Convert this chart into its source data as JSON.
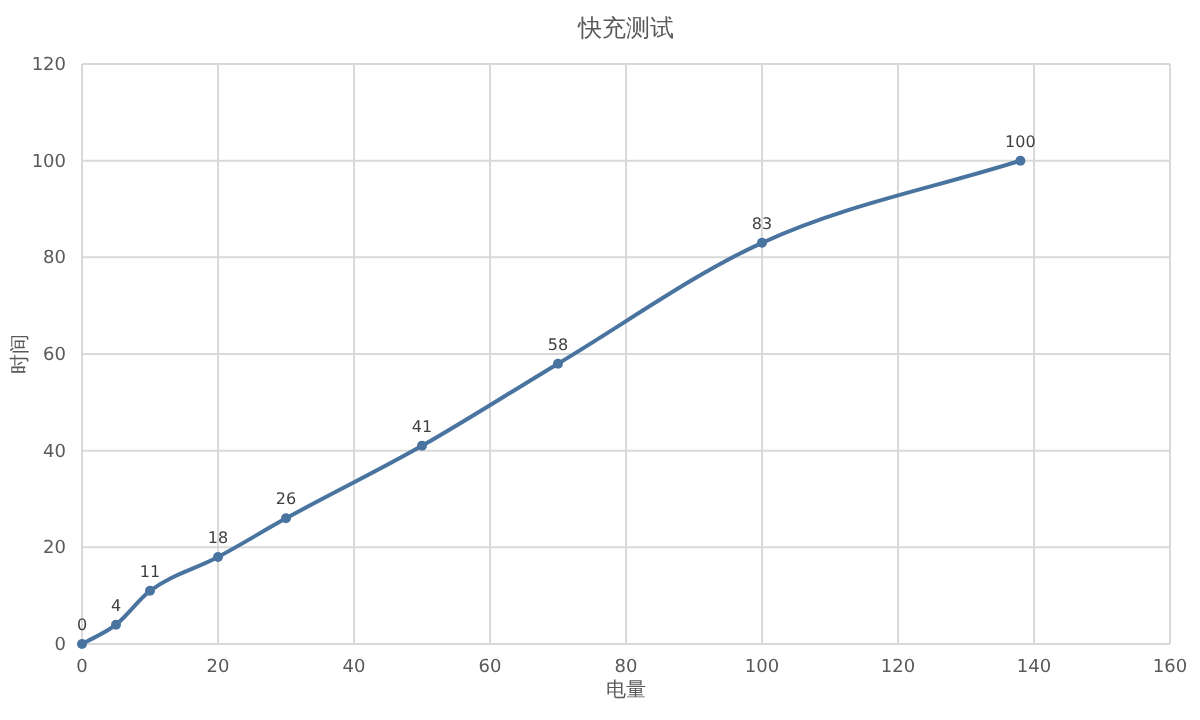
{
  "chart_data": {
    "type": "line",
    "title": "快充测试",
    "xlabel": "电量",
    "ylabel": "时间",
    "x": [
      0,
      5,
      10,
      20,
      30,
      50,
      70,
      100,
      138
    ],
    "series": [
      {
        "color": "#4a74a0",
        "values": [
          0,
          4,
          11,
          18,
          26,
          41,
          58,
          83,
          100
        ]
      }
    ],
    "xlim": [
      0,
      160
    ],
    "xticks": [
      0,
      20,
      40,
      60,
      80,
      100,
      120,
      140,
      160
    ],
    "ylim": [
      0,
      120
    ],
    "yticks": [
      0,
      20,
      40,
      60,
      80,
      100,
      120
    ],
    "grid": true,
    "marker": "circle",
    "data_labels": true,
    "line_style": "solid"
  }
}
